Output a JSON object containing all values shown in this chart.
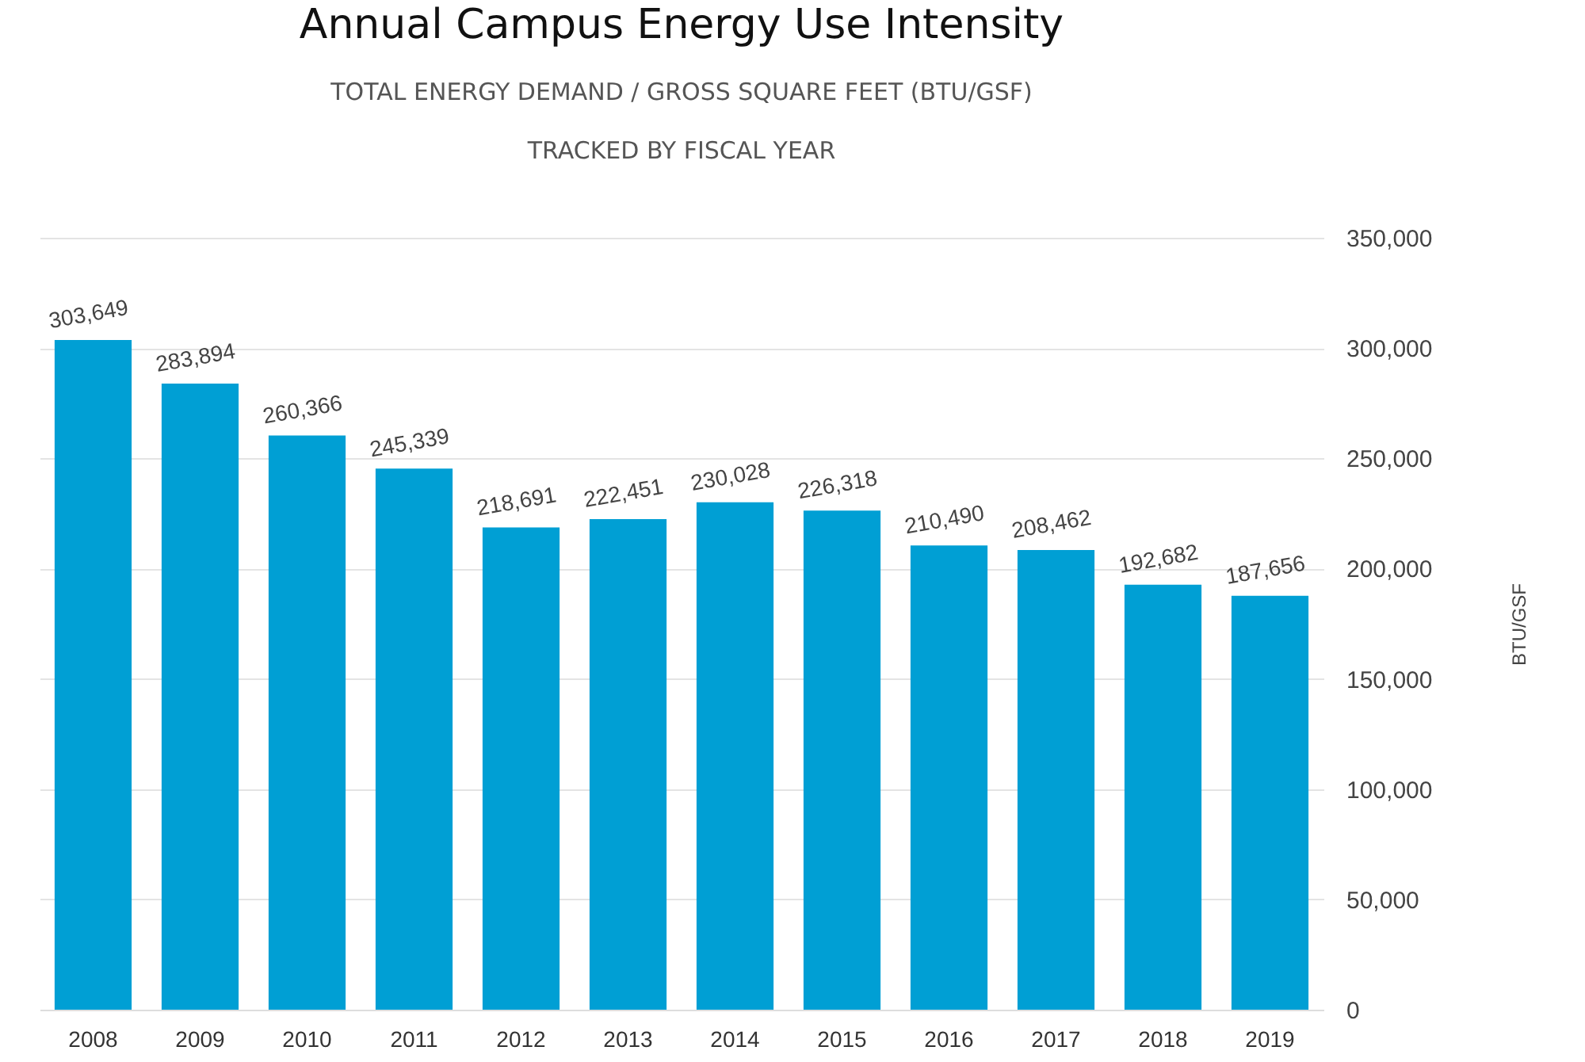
{
  "chart_data": {
    "type": "bar",
    "title": "Annual Campus Energy Use Intensity",
    "subtitle": "TOTAL ENERGY DEMAND / GROSS SQUARE FEET (BTU/GSF)\nTRACKED BY FISCAL YEAR",
    "ylabel": "BTU/GSF",
    "categories": [
      "2008",
      "2009",
      "2010",
      "2011",
      "2012",
      "2013",
      "2014",
      "2015",
      "2016",
      "2017",
      "2018",
      "2019"
    ],
    "values": [
      303649,
      283894,
      260366,
      245339,
      218691,
      222451,
      230028,
      226318,
      210490,
      208462,
      192682,
      187656
    ],
    "value_labels": [
      "303,649",
      "283,894",
      "260,366",
      "245,339",
      "218,691",
      "222,451",
      "230,028",
      "226,318",
      "210,490",
      "208,462",
      "192,682",
      "187,656"
    ],
    "color": "#009fd4",
    "ylim": [
      0,
      350000
    ],
    "yticks": [
      0,
      {
        "value": 50000,
        "label": "50,000"
      },
      {
        "value": 100000,
        "label": "100,000"
      },
      {
        "value": 150000,
        "label": "150,000"
      },
      {
        "value": 200000,
        "label": "200,000"
      },
      {
        "value": 250000,
        "label": "250,000"
      },
      {
        "value": 300000,
        "label": "300,000"
      },
      {
        "value": 350000,
        "label": "350,000"
      }
    ],
    "grid": "y"
  }
}
